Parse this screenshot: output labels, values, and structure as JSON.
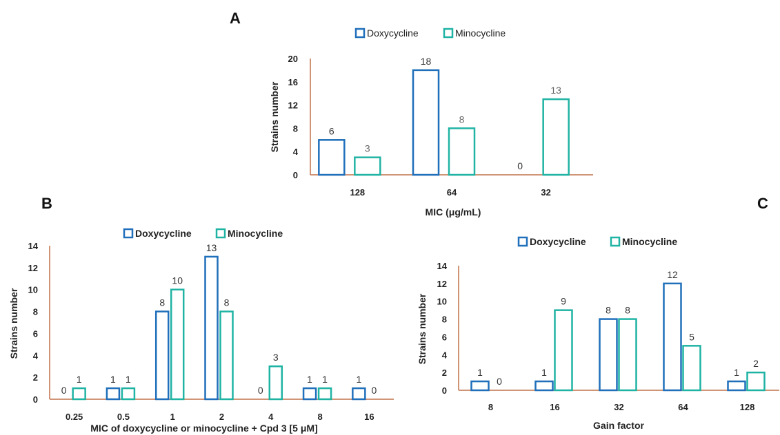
{
  "colors": {
    "doxycycline": "#1f6fba",
    "minocycline": "#1fb3a3",
    "axis": "#c0704a"
  },
  "chart_data": [
    {
      "panel": "A",
      "type": "bar",
      "categories": [
        "128",
        "64",
        "32"
      ],
      "series": [
        {
          "name": "Doxycycline",
          "values": [
            6,
            18,
            0
          ]
        },
        {
          "name": "Minocycline",
          "values": [
            3,
            8,
            13
          ]
        }
      ],
      "xlabel": "MIC (μg/mL)",
      "ylabel": "Strains number",
      "ylim": [
        0,
        20
      ],
      "yticks": [
        "0",
        "4",
        "8",
        "12",
        "16",
        "20"
      ],
      "legend": "top",
      "grid": false
    },
    {
      "panel": "B",
      "type": "bar",
      "categories": [
        "0.25",
        "0.5",
        "1",
        "2",
        "4",
        "8",
        "16"
      ],
      "series": [
        {
          "name": "Doxycycline",
          "values": [
            0,
            1,
            8,
            13,
            0,
            1,
            1
          ]
        },
        {
          "name": "Minocycline",
          "values": [
            1,
            1,
            10,
            8,
            3,
            1,
            0
          ]
        }
      ],
      "xlabel": "MIC of doxycycline or minocycline + Cpd 3 [5 μM]",
      "ylabel": "Strains number",
      "ylim": [
        0,
        14
      ],
      "yticks": [
        "0",
        "2",
        "4",
        "6",
        "8",
        "10",
        "12",
        "14"
      ],
      "legend": "top",
      "grid": false
    },
    {
      "panel": "C",
      "type": "bar",
      "categories": [
        "8",
        "16",
        "32",
        "64",
        "128"
      ],
      "series": [
        {
          "name": "Doxycycline",
          "values": [
            1,
            1,
            8,
            12,
            1
          ]
        },
        {
          "name": "Minocycline",
          "values": [
            0,
            9,
            8,
            5,
            2
          ]
        }
      ],
      "xlabel": "Gain factor",
      "ylabel": "Strains number",
      "ylim": [
        0,
        14
      ],
      "yticks": [
        "0",
        "2",
        "4",
        "6",
        "8",
        "10",
        "12",
        "14"
      ],
      "legend": "top",
      "grid": false
    }
  ]
}
